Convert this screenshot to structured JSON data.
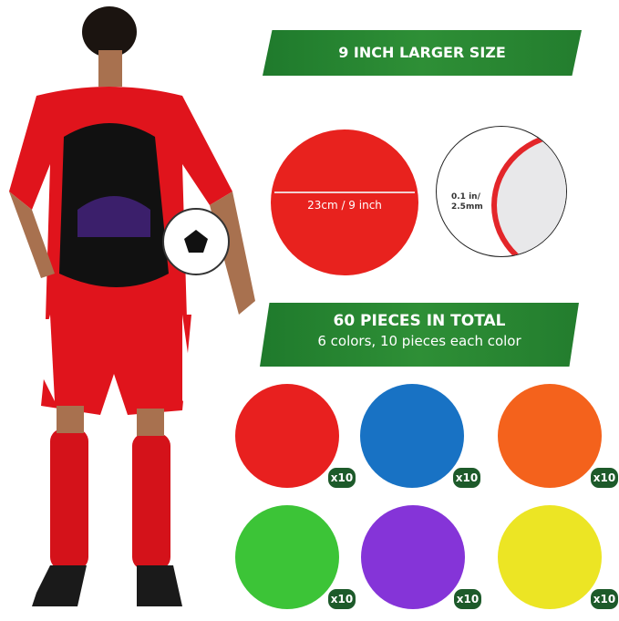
{
  "banner_size": {
    "title": "9 INCH LARGER SIZE"
  },
  "size_disc": {
    "label": "23cm / 9 inch",
    "color": "#e8221e"
  },
  "thickness": {
    "label_line1": "0.1 in/",
    "label_line2": "2.5mm"
  },
  "banner_total": {
    "title": "60 PIECES IN TOTAL",
    "subtitle": "6 colors, 10 pieces each color"
  },
  "discs": [
    {
      "color": "#e8201f",
      "count": "x10"
    },
    {
      "color": "#1872c4",
      "count": "x10"
    },
    {
      "color": "#f4621c",
      "count": "x10"
    },
    {
      "color": "#3cc437",
      "count": "x10"
    },
    {
      "color": "#8534d8",
      "count": "x10"
    },
    {
      "color": "#ece524",
      "count": "x10"
    }
  ],
  "accent": "#2e8f36"
}
